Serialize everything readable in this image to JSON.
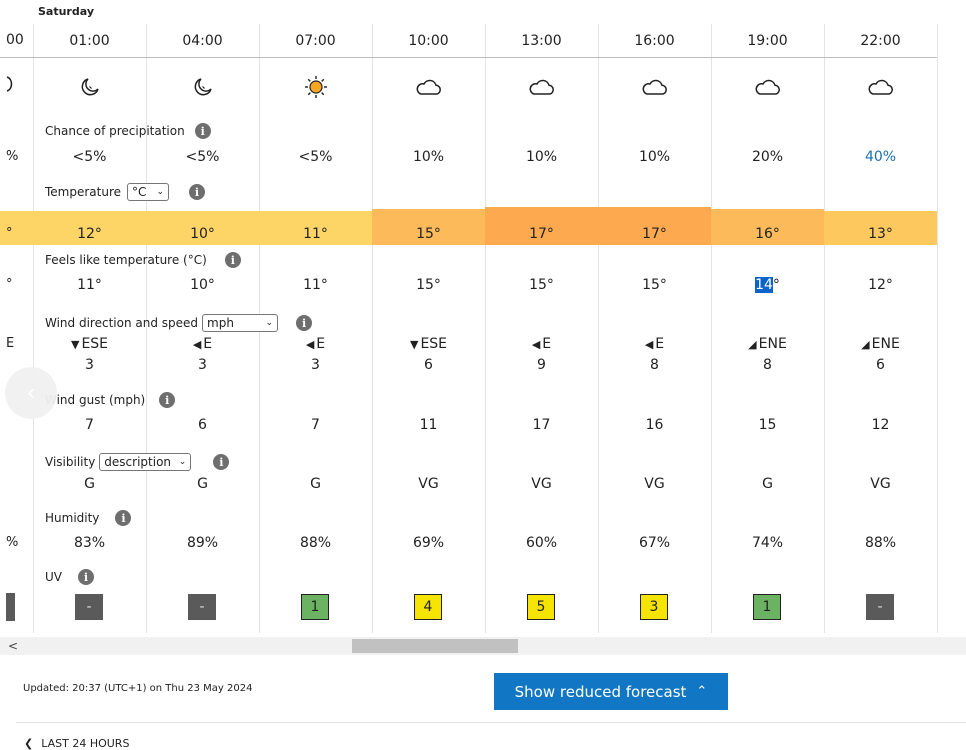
{
  "day": "Saturday",
  "partial_column": {
    "time": "00",
    "precip": "%",
    "temp": "°",
    "feels": "°",
    "wind_dir": "E",
    "humidity": "%"
  },
  "columns": [
    {
      "time": "01:00",
      "icon": "moon-icon",
      "precip": "<5%",
      "temp": "12°",
      "temp_color": "#fdd466",
      "feels": "11°",
      "wind_dir": "ESE",
      "wind_arrow": "▼",
      "wind_speed": "3",
      "gust": "7",
      "visibility": "G",
      "humidity": "83%",
      "uv": "-",
      "uv_color": "#5a5a5a"
    },
    {
      "time": "04:00",
      "icon": "moon-icon",
      "precip": "<5%",
      "temp": "10°",
      "temp_color": "#fdd466",
      "feels": "10°",
      "wind_dir": "E",
      "wind_arrow": "◀",
      "wind_speed": "3",
      "gust": "6",
      "visibility": "G",
      "humidity": "89%",
      "uv": "-",
      "uv_color": "#5a5a5a"
    },
    {
      "time": "07:00",
      "icon": "sun-icon",
      "precip": "<5%",
      "temp": "11°",
      "temp_color": "#fdd466",
      "feels": "11°",
      "wind_dir": "E",
      "wind_arrow": "◀",
      "wind_speed": "3",
      "gust": "7",
      "visibility": "G",
      "humidity": "88%",
      "uv": "1",
      "uv_color": "#6bb363"
    },
    {
      "time": "10:00",
      "icon": "cloud-icon",
      "precip": "10%",
      "temp": "15°",
      "temp_color": "#fdba5a",
      "feels": "15°",
      "wind_dir": "ESE",
      "wind_arrow": "▼",
      "wind_speed": "6",
      "gust": "11",
      "visibility": "VG",
      "humidity": "69%",
      "uv": "4",
      "uv_color": "#f5e400"
    },
    {
      "time": "13:00",
      "icon": "cloud-icon",
      "precip": "10%",
      "temp": "17°",
      "temp_color": "#fca94f",
      "feels": "15°",
      "wind_dir": "E",
      "wind_arrow": "◀",
      "wind_speed": "9",
      "gust": "17",
      "visibility": "VG",
      "humidity": "60%",
      "uv": "5",
      "uv_color": "#f5e400"
    },
    {
      "time": "16:00",
      "icon": "cloud-icon",
      "precip": "10%",
      "temp": "17°",
      "temp_color": "#fca94f",
      "feels": "15°",
      "wind_dir": "E",
      "wind_arrow": "◀",
      "wind_speed": "8",
      "gust": "16",
      "visibility": "VG",
      "humidity": "67%",
      "uv": "3",
      "uv_color": "#f5e400"
    },
    {
      "time": "19:00",
      "icon": "cloud-icon",
      "precip": "20%",
      "temp": "16°",
      "temp_color": "#fdba5a",
      "feels_num": "14",
      "feels_deg": "°",
      "wind_dir": "ENE",
      "wind_arrow": "◢",
      "wind_speed": "8",
      "gust": "15",
      "visibility": "G",
      "humidity": "74%",
      "uv": "1",
      "uv_color": "#6bb363"
    },
    {
      "time": "22:00",
      "icon": "cloud-icon",
      "precip": "40%",
      "precip_color": "#1a6fb0",
      "temp": "13°",
      "temp_color": "#fdc95e",
      "feels": "12°",
      "wind_dir": "ENE",
      "wind_arrow": "◢",
      "wind_speed": "6",
      "gust": "12",
      "visibility": "VG",
      "humidity": "88%",
      "uv": "-",
      "uv_color": "#5a5a5a"
    }
  ],
  "labels": {
    "precip": "Chance of precipitation",
    "temperature": "Temperature",
    "temp_unit": "°C",
    "feels": "Feels like temperature (°C)",
    "wind": "Wind direction and speed",
    "wind_unit": "mph",
    "gust": "Wind gust (mph)",
    "visibility": "Visibility",
    "visibility_mode": "description",
    "humidity": "Humidity",
    "uv": "UV",
    "info_glyph": "i"
  },
  "footer": {
    "updated": "Updated: 20:37 (UTC+1) on Thu 23 May 2024",
    "reduced_btn": "Show reduced forecast",
    "last24": "LAST 24 HOURS"
  },
  "colors": {
    "accent": "#1177c4",
    "temp_partial": "#fdd466"
  }
}
